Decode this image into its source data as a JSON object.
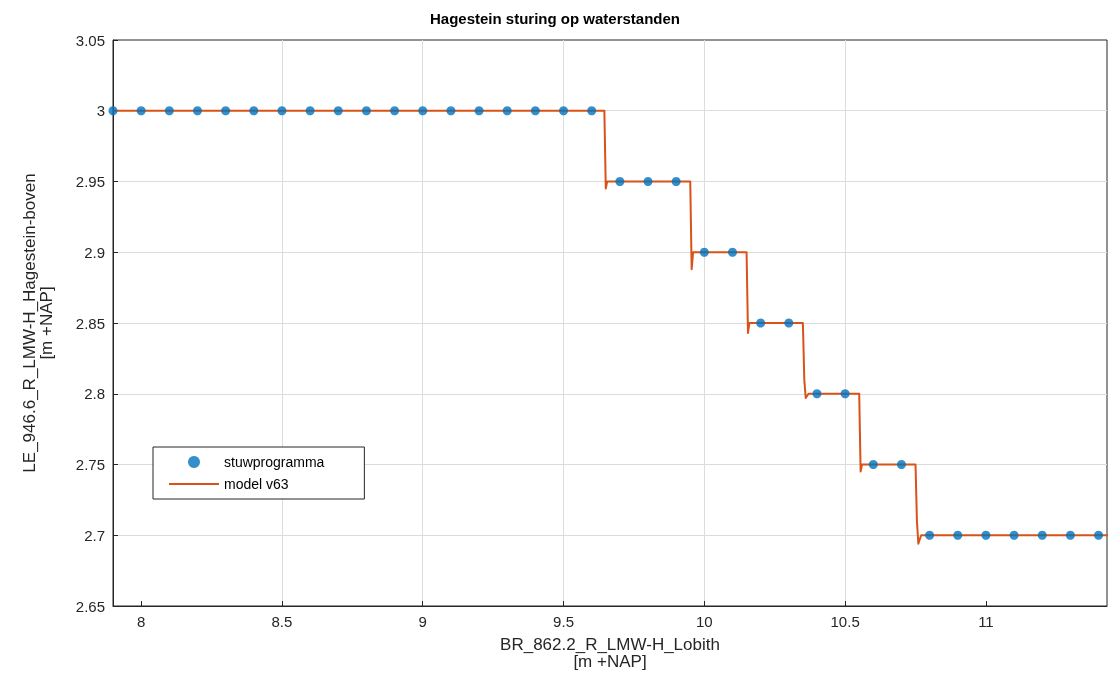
{
  "chart_data": {
    "type": "scatter",
    "title": "Hagestein sturing op waterstanden",
    "xlabel": "BR_862.2_R_LMW-H_Lobith\n[m +NAP]",
    "ylabel": "LE_946.6_R_LMW-H_Hagestein-boven\n[m +NAP]",
    "xlim": [
      7.9,
      11.43
    ],
    "xticks": [
      8,
      8.5,
      9,
      9.5,
      10,
      10.5,
      11
    ],
    "ylim": [
      2.65,
      3.05
    ],
    "yticks": [
      2.65,
      2.7,
      2.75,
      2.8,
      2.85,
      2.9,
      2.95,
      3,
      3.05
    ],
    "grid": true,
    "legend": "bottom left",
    "series": [
      {
        "name": "stuwprogramma",
        "marker": "circle",
        "color": "#0072bd",
        "x": [
          7.9,
          8,
          8.1,
          8.2,
          8.3,
          8.4,
          8.5,
          8.6,
          8.7,
          8.8,
          8.9,
          9,
          9.1,
          9.2,
          9.3,
          9.4,
          9.5,
          9.6,
          9.7,
          9.8,
          9.9,
          10,
          10.1,
          10.2,
          10.3,
          10.4,
          10.5,
          10.6,
          10.7,
          10.8,
          10.9,
          11,
          11.1,
          11.2,
          11.3,
          11.4
        ],
        "values": [
          3,
          3,
          3,
          3,
          3,
          3,
          3,
          3,
          3,
          3,
          3,
          3,
          3,
          3,
          3,
          3,
          3,
          3,
          2.95,
          2.95,
          2.95,
          2.9,
          2.9,
          2.85,
          2.85,
          2.8,
          2.8,
          2.75,
          2.75,
          2.7,
          2.7,
          2.7,
          2.7,
          2.7,
          2.7,
          2.7
        ]
      },
      {
        "name": "model v63",
        "type": "line",
        "marker": "none",
        "line_style": "solid",
        "color": "#d95319",
        "x": [
          7.9,
          9.645,
          9.65,
          9.655,
          9.95,
          9.955,
          9.96,
          10.15,
          10.155,
          10.16,
          10.35,
          10.355,
          10.36,
          10.37,
          10.55,
          10.555,
          10.56,
          10.75,
          10.755,
          10.76,
          10.77,
          11.43
        ],
        "values": [
          3,
          3,
          2.945,
          2.95,
          2.95,
          2.888,
          2.9,
          2.9,
          2.843,
          2.85,
          2.85,
          2.81,
          2.797,
          2.8,
          2.8,
          2.745,
          2.75,
          2.75,
          2.71,
          2.694,
          2.7,
          2.7
        ]
      }
    ]
  }
}
